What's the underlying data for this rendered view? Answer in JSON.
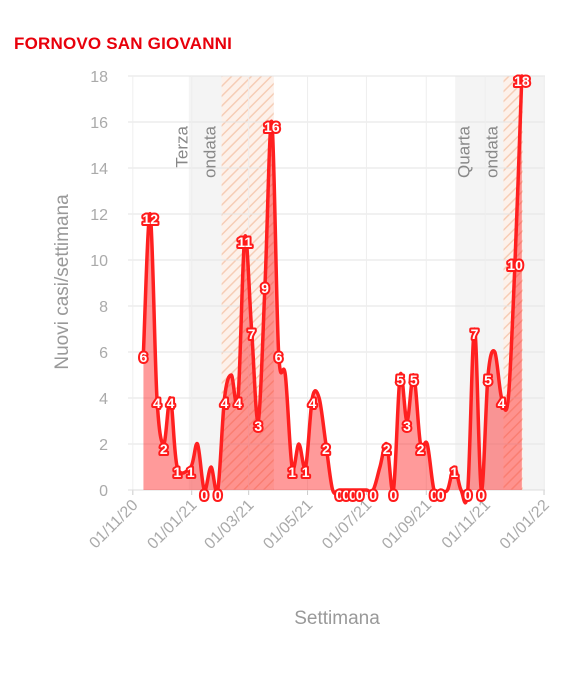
{
  "chart_data": {
    "type": "area",
    "title": "FORNOVO SAN GIOVANNI",
    "xlabel": "Settimana",
    "ylabel": "Nuovi casi/settimana",
    "ylim": [
      0,
      18
    ],
    "y_ticks": [
      "0",
      "2",
      "4",
      "6",
      "8",
      "10",
      "12",
      "14",
      "16",
      "18"
    ],
    "x_ticks": [
      {
        "date": "2020-11-01",
        "label": "01/11/20"
      },
      {
        "date": "2021-01-01",
        "label": "01/01/21"
      },
      {
        "date": "2021-03-01",
        "label": "01/03/21"
      },
      {
        "date": "2021-05-01",
        "label": "01/05/21"
      },
      {
        "date": "2021-07-01",
        "label": "01/07/21"
      },
      {
        "date": "2021-09-01",
        "label": "01/09/21"
      },
      {
        "date": "2021-11-01",
        "label": "01/11/21"
      },
      {
        "date": "2022-01-01",
        "label": "01/01/22"
      }
    ],
    "xlim": [
      "2020-10-27",
      "2022-01-02"
    ],
    "grid": true,
    "series": [
      {
        "color": "#ff2020",
        "points": [
          {
            "date": "2020-11-12",
            "value": 6,
            "label": "6"
          },
          {
            "date": "2020-11-19",
            "value": 12,
            "label": "12"
          },
          {
            "date": "2020-11-26",
            "value": 4,
            "label": "4"
          },
          {
            "date": "2020-12-03",
            "value": 2,
            "label": "2"
          },
          {
            "date": "2020-12-10",
            "value": 4,
            "label": "4"
          },
          {
            "date": "2020-12-17",
            "value": 1,
            "label": "1"
          },
          {
            "date": "2020-12-24",
            "value": null,
            "label": ""
          },
          {
            "date": "2020-12-31",
            "value": 1,
            "label": "1"
          },
          {
            "date": "2021-01-07",
            "value": 2,
            "label": ""
          },
          {
            "date": "2021-01-14",
            "value": 0,
            "label": "0"
          },
          {
            "date": "2021-01-21",
            "value": 1,
            "label": ""
          },
          {
            "date": "2021-01-28",
            "value": 0,
            "label": "0"
          },
          {
            "date": "2021-02-04",
            "value": 4,
            "label": "4"
          },
          {
            "date": "2021-02-11",
            "value": 5,
            "label": ""
          },
          {
            "date": "2021-02-18",
            "value": 4,
            "label": "4"
          },
          {
            "date": "2021-02-25",
            "value": 11,
            "label": "11"
          },
          {
            "date": "2021-03-04",
            "value": 7,
            "label": "7"
          },
          {
            "date": "2021-03-11",
            "value": 3,
            "label": "3"
          },
          {
            "date": "2021-03-18",
            "value": 9,
            "label": "9"
          },
          {
            "date": "2021-03-25",
            "value": 16,
            "label": "16"
          },
          {
            "date": "2021-04-01",
            "value": 6,
            "label": "6"
          },
          {
            "date": "2021-04-08",
            "value": 5,
            "label": ""
          },
          {
            "date": "2021-04-15",
            "value": 1,
            "label": "1"
          },
          {
            "date": "2021-04-22",
            "value": 2,
            "label": ""
          },
          {
            "date": "2021-04-29",
            "value": 1,
            "label": "1"
          },
          {
            "date": "2021-05-06",
            "value": 4,
            "label": "4"
          },
          {
            "date": "2021-05-13",
            "value": 4,
            "label": ""
          },
          {
            "date": "2021-05-20",
            "value": 2,
            "label": "2"
          },
          {
            "date": "2021-05-27",
            "value": 0,
            "label": ""
          },
          {
            "date": "2021-06-03",
            "value": 0,
            "label": "0"
          },
          {
            "date": "2021-06-10",
            "value": 0,
            "label": "0"
          },
          {
            "date": "2021-06-17",
            "value": 0,
            "label": "0"
          },
          {
            "date": "2021-06-24",
            "value": 0,
            "label": "0"
          },
          {
            "date": "2021-07-01",
            "value": 0,
            "label": ""
          },
          {
            "date": "2021-07-08",
            "value": 0,
            "label": "0"
          },
          {
            "date": "2021-07-15",
            "value": 1,
            "label": ""
          },
          {
            "date": "2021-07-22",
            "value": 2,
            "label": "2"
          },
          {
            "date": "2021-07-29",
            "value": 0,
            "label": "0"
          },
          {
            "date": "2021-08-05",
            "value": 5,
            "label": "5"
          },
          {
            "date": "2021-08-12",
            "value": 3,
            "label": "3"
          },
          {
            "date": "2021-08-19",
            "value": 5,
            "label": "5"
          },
          {
            "date": "2021-08-26",
            "value": 2,
            "label": "2"
          },
          {
            "date": "2021-09-02",
            "value": 2,
            "label": ""
          },
          {
            "date": "2021-09-09",
            "value": 0,
            "label": "0"
          },
          {
            "date": "2021-09-16",
            "value": 0,
            "label": "0"
          },
          {
            "date": "2021-09-23",
            "value": 0,
            "label": ""
          },
          {
            "date": "2021-09-30",
            "value": 1,
            "label": "1"
          },
          {
            "date": "2021-10-07",
            "value": 0,
            "label": ""
          },
          {
            "date": "2021-10-14",
            "value": 0,
            "label": "0"
          },
          {
            "date": "2021-10-21",
            "value": 7,
            "label": "7"
          },
          {
            "date": "2021-10-28",
            "value": 0,
            "label": "0"
          },
          {
            "date": "2021-11-04",
            "value": 5,
            "label": "5"
          },
          {
            "date": "2021-11-11",
            "value": 6,
            "label": ""
          },
          {
            "date": "2021-11-18",
            "value": 4,
            "label": "4"
          },
          {
            "date": "2021-11-25",
            "value": 4,
            "label": ""
          },
          {
            "date": "2021-12-02",
            "value": 10,
            "label": "10"
          },
          {
            "date": "2021-12-09",
            "value": 18,
            "label": "18"
          }
        ]
      }
    ],
    "shaded_regions": [
      {
        "start": "2020-12-29",
        "end": "2021-03-27",
        "fill": "#f4f4f4",
        "label": ""
      },
      {
        "start": "2021-02-01",
        "end": "2021-03-27",
        "fill": "hatch",
        "label": ""
      },
      {
        "start": "2021-10-01",
        "end": "2022-01-02",
        "fill": "#f4f4f4",
        "label": ""
      },
      {
        "start": "2021-11-20",
        "end": "2021-12-10",
        "fill": "hatch",
        "label": ""
      }
    ],
    "annotations": [
      {
        "date": "2021-02-01",
        "lines": [
          "Terza",
          "ondata"
        ]
      },
      {
        "date": "2021-11-20",
        "lines": [
          "Quarta",
          "ondata"
        ]
      }
    ]
  }
}
